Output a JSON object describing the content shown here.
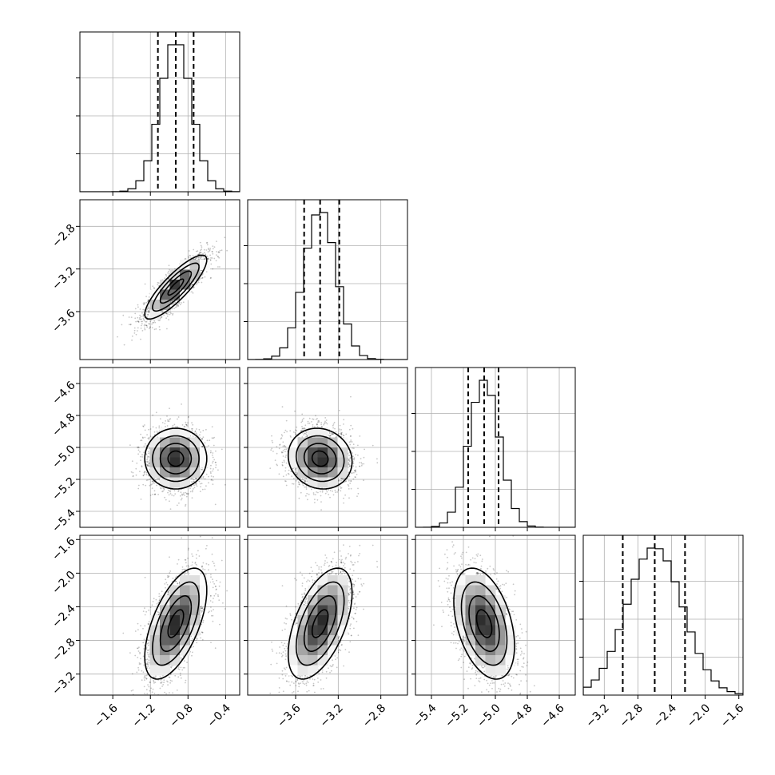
{
  "chart_data": {
    "type": "scatter",
    "kind": "corner-plot",
    "grid": true,
    "colors": {
      "ink": "#000000",
      "grid": "#b0b0b0",
      "points": "#000000"
    },
    "parameters": [
      {
        "range": [
          -1.95,
          -0.25
        ],
        "ticks": [
          "-1.6",
          "-1.2",
          "-0.8",
          "-0.4"
        ],
        "tick_values": [
          -1.6,
          -1.2,
          -0.8,
          -0.4
        ],
        "quantiles": [
          -1.12,
          -0.93,
          -0.74
        ],
        "mean": -0.93,
        "sd": 0.165
      },
      {
        "range": [
          -4.05,
          -2.55
        ],
        "ticks": [
          "-3.6",
          "-3.2",
          "-2.8"
        ],
        "tick_values": [
          -3.6,
          -3.2,
          -2.8
        ],
        "quantiles": [
          -3.52,
          -3.37,
          -3.19
        ],
        "mean": -3.37,
        "sd": 0.15
      },
      {
        "range": [
          -5.5,
          -4.5
        ],
        "ticks": [
          "-5.4",
          "-5.2",
          "-5.0",
          "-4.8",
          "-4.6"
        ],
        "tick_values": [
          -5.4,
          -5.2,
          -5.0,
          -4.8,
          -4.6
        ],
        "quantiles": [
          -5.17,
          -5.07,
          -4.98
        ],
        "mean": -5.07,
        "sd": 0.095
      },
      {
        "range": [
          -3.45,
          -1.55
        ],
        "ticks": [
          "-3.2",
          "-2.8",
          "-2.4",
          "-2.0",
          "-1.6"
        ],
        "tick_values": [
          -3.2,
          -2.8,
          -2.4,
          -2.0,
          -1.6
        ],
        "quantiles": [
          -2.98,
          -2.6,
          -2.24
        ],
        "mean": -2.6,
        "sd": 0.33
      }
    ],
    "correlations": {
      "1-0": 0.85,
      "2-0": 0.0,
      "2-1": -0.1,
      "3-0": 0.6,
      "3-1": 0.55,
      "3-2": -0.4
    },
    "contour_levels_sigma": [
      0.5,
      1.0,
      1.5,
      2.0
    ],
    "samples_per_panel": 2200
  }
}
